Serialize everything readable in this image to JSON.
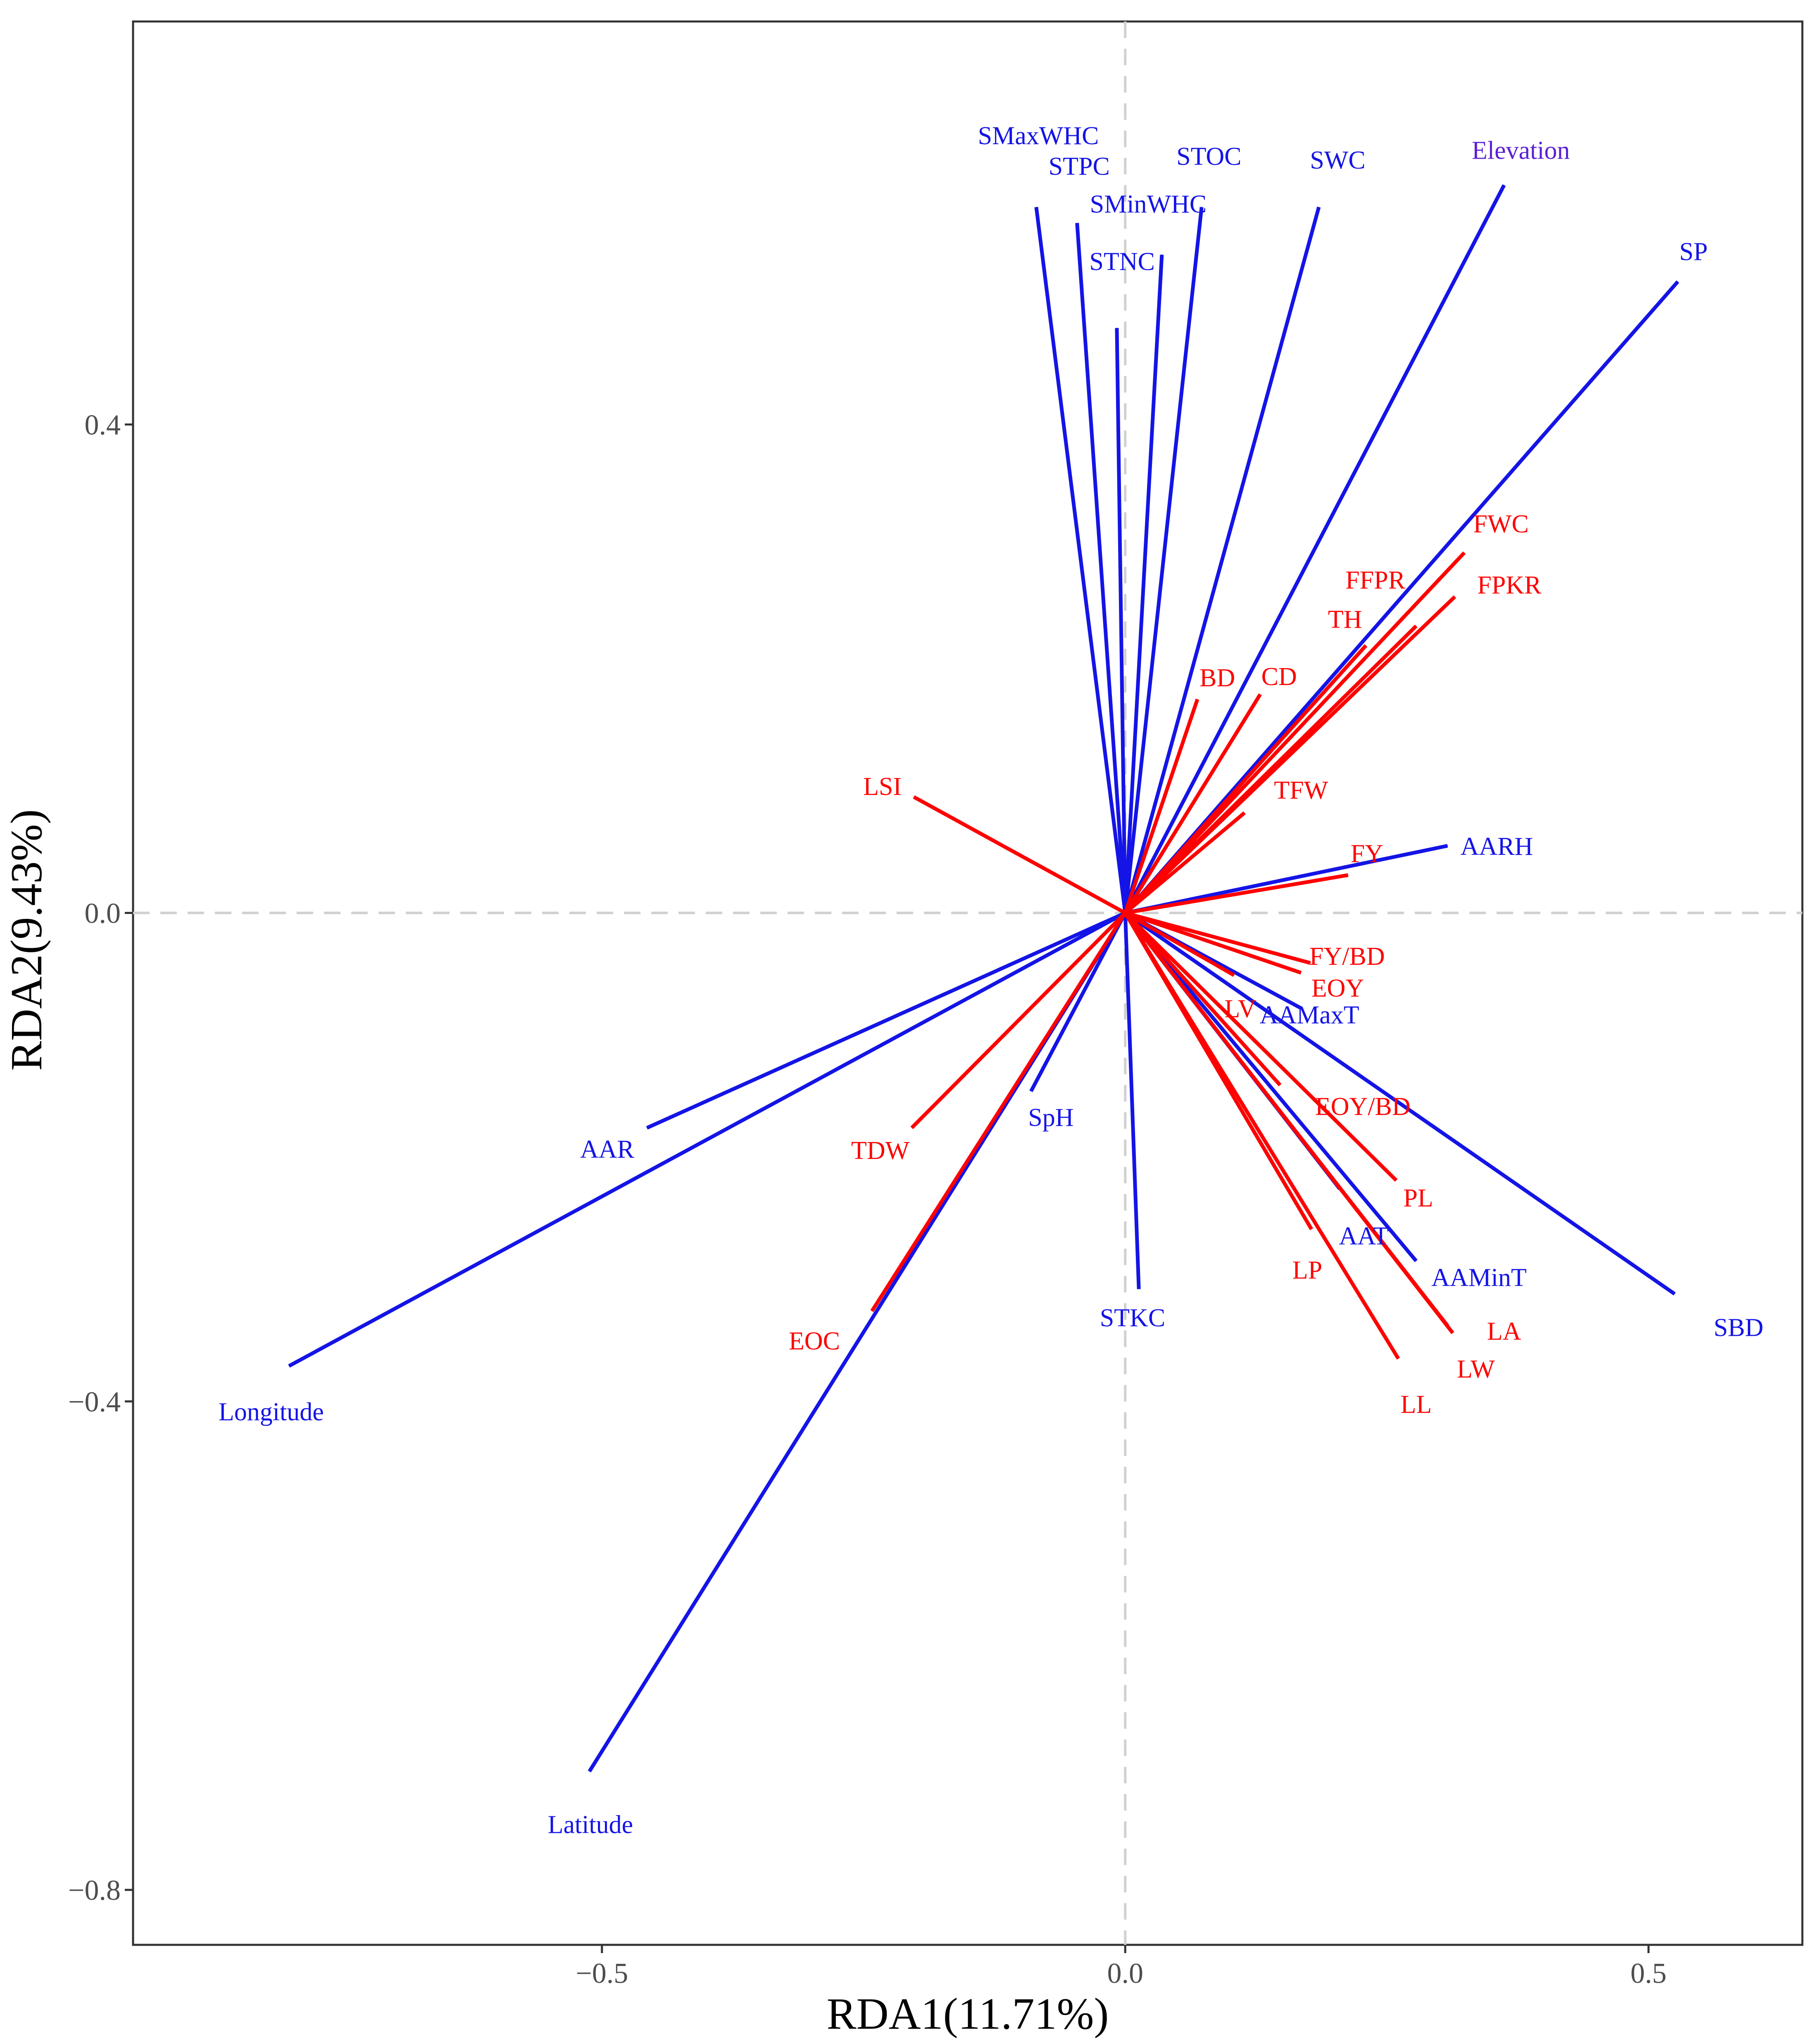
{
  "chart_data": {
    "type": "biplot",
    "xlabel": "RDA1(11.71%)",
    "ylabel": "RDA2(9.43%)",
    "xlim": [
      -0.948,
      0.647
    ],
    "ylim": [
      -0.845,
      0.73
    ],
    "x_ticks": [
      {
        "value": -0.5,
        "label": "−0.5"
      },
      {
        "value": 0.0,
        "label": "0.0"
      },
      {
        "value": 0.5,
        "label": "0.5"
      }
    ],
    "y_ticks": [
      {
        "value": 0.4,
        "label": "0.4"
      },
      {
        "value": 0.0,
        "label": "0.0"
      },
      {
        "value": -0.4,
        "label": "−0.4"
      },
      {
        "value": -0.8,
        "label": "−0.8"
      }
    ],
    "zero_lines": true,
    "grid": false,
    "colors": {
      "environment": "#1414e6",
      "trait": "#ff0000",
      "elevation_label": "#5b1fd6"
    },
    "series": [
      {
        "group": "environment",
        "vectors": [
          {
            "label": "SMaxWHC",
            "x": -0.085,
            "y": 0.578,
            "lx": -0.083,
            "ly": 0.637
          },
          {
            "label": "STPC",
            "x": -0.046,
            "y": 0.565,
            "lx": -0.044,
            "ly": 0.612
          },
          {
            "label": "SMinWHC",
            "x": -0.008,
            "y": 0.479,
            "lx": 0.022,
            "ly": 0.581
          },
          {
            "label": "STNC",
            "x": 0.035,
            "y": 0.539,
            "lx": -0.003,
            "ly": 0.534
          },
          {
            "label": "STOC",
            "x": 0.073,
            "y": 0.578,
            "lx": 0.08,
            "ly": 0.62
          },
          {
            "label": "SWC",
            "x": 0.185,
            "y": 0.578,
            "lx": 0.203,
            "ly": 0.617
          },
          {
            "label": "Elevation",
            "x": 0.362,
            "y": 0.596,
            "lx": 0.378,
            "ly": 0.625
          },
          {
            "label": "SP",
            "x": 0.528,
            "y": 0.517,
            "lx": 0.543,
            "ly": 0.542
          },
          {
            "label": "AARH",
            "x": 0.308,
            "y": 0.055,
            "lx": 0.355,
            "ly": 0.055
          },
          {
            "label": "AAMaxT",
            "x": 0.168,
            "y": -0.078,
            "lx": 0.176,
            "ly": -0.083
          },
          {
            "label": "AAT",
            "x": 0.205,
            "y": -0.226,
            "lx": 0.228,
            "ly": -0.264
          },
          {
            "label": "AAMinT",
            "x": 0.278,
            "y": -0.285,
            "lx": 0.338,
            "ly": -0.298
          },
          {
            "label": "SBD",
            "x": 0.525,
            "y": -0.312,
            "lx": 0.586,
            "ly": -0.339
          },
          {
            "label": "STKC",
            "x": 0.013,
            "y": -0.308,
            "lx": 0.007,
            "ly": -0.331
          },
          {
            "label": "SpH",
            "x": -0.09,
            "y": -0.146,
            "lx": -0.071,
            "ly": -0.167
          },
          {
            "label": "AAR",
            "x": -0.457,
            "y": -0.176,
            "lx": -0.495,
            "ly": -0.193
          },
          {
            "label": "Longitude",
            "x": -0.799,
            "y": -0.371,
            "lx": -0.816,
            "ly": -0.408
          },
          {
            "label": "Latitude",
            "x": -0.512,
            "y": -0.703,
            "lx": -0.511,
            "ly": -0.746
          }
        ]
      },
      {
        "group": "trait",
        "vectors": [
          {
            "label": "FWC",
            "x": 0.324,
            "y": 0.295,
            "lx": 0.359,
            "ly": 0.319
          },
          {
            "label": "FFPR",
            "x": 0.278,
            "y": 0.235,
            "lx": 0.239,
            "ly": 0.273
          },
          {
            "label": "FPKR",
            "x": 0.315,
            "y": 0.259,
            "lx": 0.367,
            "ly": 0.269
          },
          {
            "label": "TH",
            "x": 0.23,
            "y": 0.219,
            "lx": 0.21,
            "ly": 0.241
          },
          {
            "label": "BD",
            "x": 0.069,
            "y": 0.175,
            "lx": 0.088,
            "ly": 0.193
          },
          {
            "label": "CD",
            "x": 0.129,
            "y": 0.179,
            "lx": 0.147,
            "ly": 0.194
          },
          {
            "label": "TFW",
            "x": 0.114,
            "y": 0.082,
            "lx": 0.168,
            "ly": 0.101
          },
          {
            "label": "LSI",
            "x": -0.202,
            "y": 0.095,
            "lx": -0.232,
            "ly": 0.104
          },
          {
            "label": "FY",
            "x": 0.213,
            "y": 0.031,
            "lx": 0.231,
            "ly": 0.049
          },
          {
            "label": "FY/BD",
            "x": 0.177,
            "y": -0.041,
            "lx": 0.212,
            "ly": -0.035
          },
          {
            "label": "EOY",
            "x": 0.168,
            "y": -0.049,
            "lx": 0.203,
            "ly": -0.061
          },
          {
            "label": "LV",
            "x": 0.104,
            "y": -0.051,
            "lx": 0.11,
            "ly": -0.078
          },
          {
            "label": "EOY/BD",
            "x": 0.148,
            "y": -0.141,
            "lx": 0.227,
            "ly": -0.158
          },
          {
            "label": "PL",
            "x": 0.259,
            "y": -0.219,
            "lx": 0.28,
            "ly": -0.233
          },
          {
            "label": "LP",
            "x": 0.178,
            "y": -0.259,
            "lx": 0.174,
            "ly": -0.292
          },
          {
            "label": "LA",
            "x": 0.313,
            "y": -0.344,
            "lx": 0.362,
            "ly": -0.342
          },
          {
            "label": "LW",
            "x": 0.308,
            "y": -0.338,
            "lx": 0.335,
            "ly": -0.373
          },
          {
            "label": "LL",
            "x": 0.261,
            "y": -0.365,
            "lx": 0.278,
            "ly": -0.402
          },
          {
            "label": "TDW",
            "x": -0.204,
            "y": -0.176,
            "lx": -0.234,
            "ly": -0.194
          },
          {
            "label": "EOC",
            "x": -0.242,
            "y": -0.326,
            "lx": -0.297,
            "ly": -0.35
          }
        ]
      }
    ]
  }
}
